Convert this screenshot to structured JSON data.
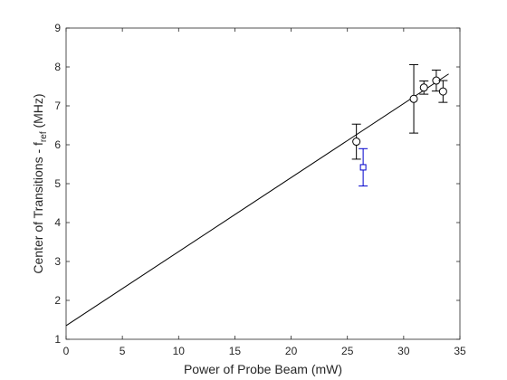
{
  "chart_data": {
    "type": "scatter",
    "xlabel": "Power of Probe Beam (mW)",
    "ylabel_main": "Center of Transitions - f",
    "ylabel_sub": "ref",
    "ylabel_unit": " (MHz)",
    "xlim": [
      0,
      35
    ],
    "ylim": [
      1,
      9
    ],
    "xticks": [
      "0",
      "5",
      "10",
      "15",
      "20",
      "25",
      "30",
      "35"
    ],
    "yticks": [
      "1",
      "2",
      "3",
      "4",
      "5",
      "6",
      "7",
      "8",
      "9"
    ],
    "grid": false,
    "series": [
      {
        "marker": "circle",
        "color": "#000000",
        "points": [
          {
            "x": 25.8,
            "y": 6.08,
            "err": 0.45
          },
          {
            "x": 30.9,
            "y": 7.18,
            "err": 0.88
          },
          {
            "x": 31.8,
            "y": 7.47,
            "err": 0.17
          },
          {
            "x": 32.9,
            "y": 7.65,
            "err": 0.27
          },
          {
            "x": 33.5,
            "y": 7.37,
            "err": 0.28
          }
        ]
      },
      {
        "marker": "square",
        "color": "#0000cc",
        "points": [
          {
            "x": 26.4,
            "y": 5.42,
            "err": 0.48
          }
        ]
      }
    ],
    "fit_line": {
      "color": "#000000",
      "x": [
        0,
        34
      ],
      "y": [
        1.35,
        7.82
      ]
    }
  }
}
